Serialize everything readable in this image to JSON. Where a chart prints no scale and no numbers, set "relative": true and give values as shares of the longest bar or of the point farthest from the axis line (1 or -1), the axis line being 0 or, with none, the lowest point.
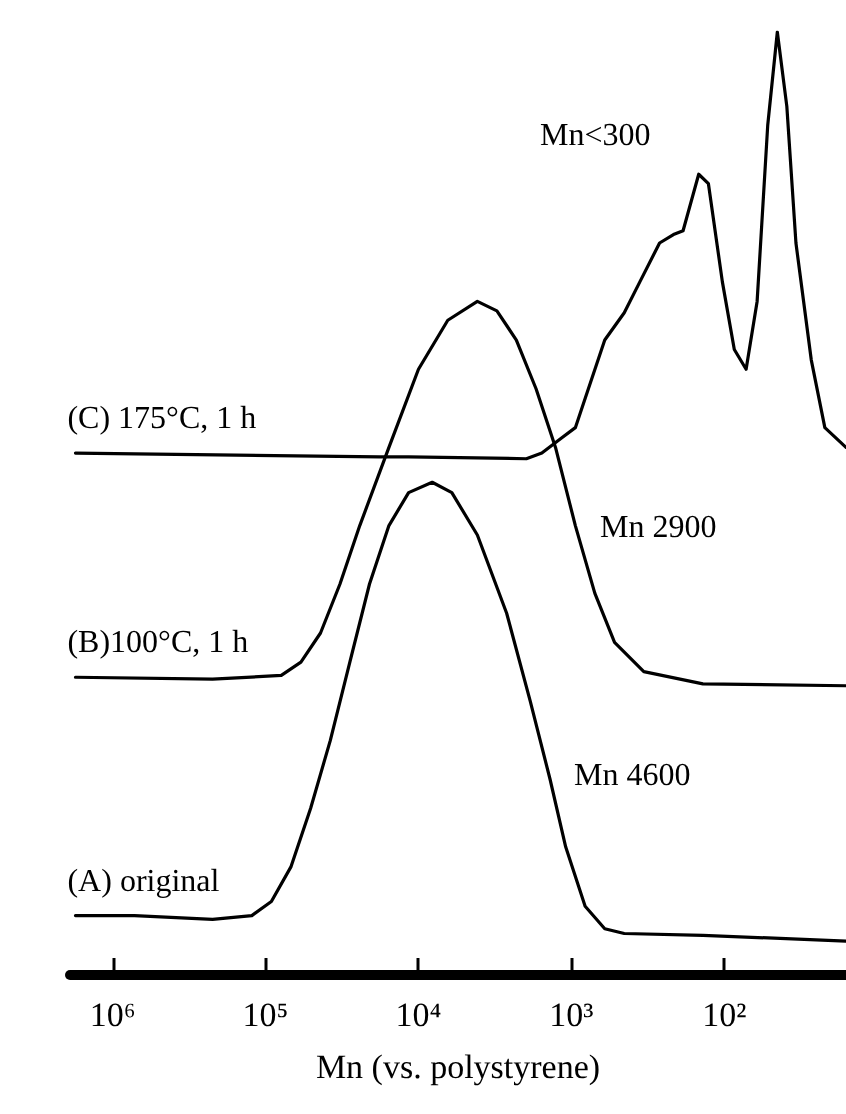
{
  "chart_data": {
    "type": "line",
    "relative": true,
    "xlabel": "Mn (vs. polystyrene)",
    "log": "x",
    "xlim": [
      1900000,
      16
    ],
    "xticks": [
      {
        "value": 1000000,
        "label": "10⁶"
      },
      {
        "value": 100000,
        "label": "10⁵"
      },
      {
        "value": 10000,
        "label": "10⁴"
      },
      {
        "value": 1000,
        "label": "10³"
      },
      {
        "value": 100,
        "label": "10²"
      }
    ],
    "grid": false,
    "legend": false,
    "marker": "none",
    "line_style": "solid",
    "series": [
      {
        "name": "(C) 175°C, 1 h",
        "color": "#000000",
        "x": [
          1750000,
          18000,
          15600,
          11600,
          1970,
          1560,
          1160,
          942,
          813,
          605,
          451,
          356,
          265,
          215,
          186,
          147,
          127,
          103,
          86,
          72,
          61,
          52,
          45,
          39,
          34,
          27,
          22,
          16
        ],
        "values": [
          0.553,
          0.549,
          0.549,
          0.549,
          0.547,
          0.553,
          0.569,
          0.58,
          0.611,
          0.673,
          0.702,
          0.735,
          0.776,
          0.785,
          0.789,
          0.849,
          0.839,
          0.735,
          0.663,
          0.642,
          0.714,
          0.901,
          1,
          0.921,
          0.776,
          0.652,
          0.58,
          0.559
        ]
      },
      {
        "name": "(B)100°C, 1 h",
        "color": "#000000",
        "x": [
          1750000,
          222000,
          78900,
          58700,
          43700,
          32600,
          24200,
          15600,
          10000,
          6430,
          4120,
          3070,
          2290,
          1700,
          1270,
          942,
          702,
          522,
          336,
          138,
          16
        ],
        "values": [
          0.315,
          0.313,
          0.317,
          0.331,
          0.362,
          0.414,
          0.476,
          0.559,
          0.642,
          0.694,
          0.714,
          0.704,
          0.673,
          0.621,
          0.559,
          0.476,
          0.404,
          0.352,
          0.321,
          0.308,
          0.306
        ]
      },
      {
        "name": "(A) original",
        "color": "#000000",
        "x": [
          1750000,
          720000,
          222000,
          123000,
          91600,
          68100,
          50700,
          37700,
          28100,
          20900,
          15600,
          11600,
          8130,
          6050,
          4120,
          2650,
          1860,
          1380,
          1090,
          813,
          605,
          451,
          138,
          16
        ],
        "values": [
          0.062,
          0.062,
          0.058,
          0.062,
          0.077,
          0.114,
          0.176,
          0.248,
          0.331,
          0.414,
          0.476,
          0.511,
          0.522,
          0.511,
          0.466,
          0.383,
          0.29,
          0.207,
          0.135,
          0.072,
          0.048,
          0.043,
          0.041,
          0.035
        ]
      }
    ],
    "annotations": [
      "Mn<300",
      "Mn 2900",
      "Mn 4600"
    ]
  }
}
